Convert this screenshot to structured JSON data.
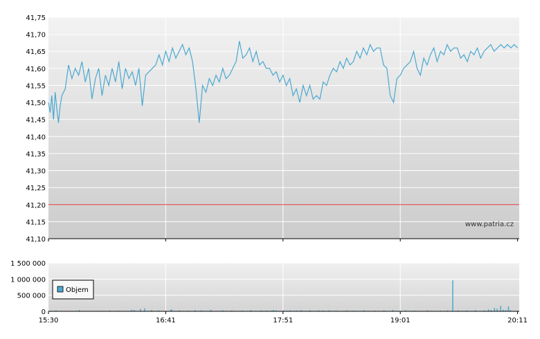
{
  "watermark": "www.patria.cz",
  "chart_data": [
    {
      "type": "line",
      "title": "",
      "xlabel": "",
      "ylabel": "",
      "ylim": [
        41.1,
        41.75
      ],
      "grid": true,
      "y_ticks": [
        "41,10",
        "41,15",
        "41,20",
        "41,25",
        "41,30",
        "41,35",
        "41,40",
        "41,45",
        "41,50",
        "41,55",
        "41,60",
        "41,65",
        "41,70",
        "41,75"
      ],
      "reference_line": {
        "value": 41.2,
        "color": "#e03030"
      },
      "line_color": "#4aa8d0",
      "x_minutes_from_1530": [
        0,
        1,
        2,
        3,
        4,
        5,
        6,
        7,
        8,
        10,
        12,
        14,
        16,
        18,
        20,
        22,
        24,
        26,
        28,
        30,
        32,
        34,
        36,
        38,
        40,
        42,
        44,
        46,
        48,
        50,
        52,
        54,
        56,
        58,
        60,
        62,
        64,
        66,
        68,
        70,
        72,
        74,
        76,
        78,
        80,
        82,
        84,
        86,
        88,
        90,
        92,
        94,
        96,
        98,
        100,
        102,
        104,
        106,
        108,
        110,
        112,
        114,
        116,
        118,
        120,
        122,
        124,
        126,
        128,
        130,
        132,
        134,
        136,
        138,
        140,
        142,
        144,
        146,
        148,
        150,
        152,
        154,
        156,
        158,
        160,
        162,
        164,
        166,
        168,
        170,
        172,
        174,
        176,
        178,
        180,
        182,
        184,
        186,
        188,
        190,
        192,
        194,
        196,
        198,
        200,
        202,
        204,
        206,
        208,
        210,
        212,
        214,
        216,
        218,
        220,
        222,
        224,
        226,
        228,
        230,
        232,
        234,
        236,
        238,
        240,
        242,
        244,
        246,
        248,
        250,
        252,
        254,
        256,
        258,
        260,
        262,
        264,
        266,
        268,
        270,
        272,
        274,
        276,
        278,
        280
      ],
      "y_values": [
        41.5,
        41.47,
        41.52,
        41.45,
        41.53,
        41.48,
        41.44,
        41.49,
        41.52,
        41.54,
        41.61,
        41.57,
        41.6,
        41.58,
        41.62,
        41.56,
        41.6,
        41.51,
        41.57,
        41.6,
        41.52,
        41.58,
        41.55,
        41.6,
        41.56,
        41.62,
        41.54,
        41.6,
        41.57,
        41.59,
        41.55,
        41.6,
        41.49,
        41.58,
        41.59,
        41.6,
        41.61,
        41.64,
        41.61,
        41.65,
        41.62,
        41.66,
        41.63,
        41.65,
        41.67,
        41.64,
        41.66,
        41.62,
        41.54,
        41.44,
        41.55,
        41.53,
        41.57,
        41.55,
        41.58,
        41.56,
        41.6,
        41.57,
        41.58,
        41.6,
        41.62,
        41.68,
        41.63,
        41.64,
        41.66,
        41.62,
        41.65,
        41.61,
        41.62,
        41.6,
        41.6,
        41.58,
        41.59,
        41.56,
        41.58,
        41.55,
        41.57,
        41.52,
        41.54,
        41.5,
        41.55,
        41.52,
        41.55,
        41.51,
        41.52,
        41.51,
        41.56,
        41.55,
        41.58,
        41.6,
        41.59,
        41.62,
        41.6,
        41.63,
        41.61,
        41.62,
        41.65,
        41.63,
        41.66,
        41.64,
        41.67,
        41.65,
        41.66,
        41.66,
        41.61,
        41.6,
        41.52,
        41.5,
        41.57,
        41.58,
        41.6,
        41.61,
        41.62,
        41.65,
        41.6,
        41.58,
        41.63,
        41.61,
        41.64,
        41.66,
        41.62,
        41.65,
        41.64,
        41.67,
        41.65,
        41.66,
        41.66,
        41.63,
        41.64,
        41.62,
        41.65,
        41.64,
        41.66,
        41.63,
        41.65,
        41.66,
        41.67,
        41.65,
        41.66,
        41.67,
        41.66,
        41.67,
        41.66,
        41.67,
        41.66
      ]
    },
    {
      "type": "bar",
      "series": [
        {
          "name": "Objem"
        }
      ],
      "ylim": [
        0,
        1500000
      ],
      "y_ticks": [
        "0",
        "500 000",
        "1 000 000",
        "1 500 000"
      ],
      "x_ticks": [
        "15:30",
        "16:41",
        "17:51",
        "19:01",
        "20:11"
      ],
      "bar_color": "#4aa8d0",
      "volumes": [
        {
          "m": 2,
          "v": 20000
        },
        {
          "m": 8,
          "v": 30000
        },
        {
          "m": 35,
          "v": 40000
        },
        {
          "m": 58,
          "v": 15000
        },
        {
          "m": 70,
          "v": 25000
        },
        {
          "m": 80,
          "v": 20000
        },
        {
          "m": 95,
          "v": 50000
        },
        {
          "m": 98,
          "v": 40000
        },
        {
          "m": 105,
          "v": 70000
        },
        {
          "m": 110,
          "v": 90000
        },
        {
          "m": 118,
          "v": 40000
        },
        {
          "m": 126,
          "v": 30000
        },
        {
          "m": 140,
          "v": 40000
        },
        {
          "m": 141,
          "v": 60000
        },
        {
          "m": 150,
          "v": 30000
        },
        {
          "m": 160,
          "v": 20000
        },
        {
          "m": 168,
          "v": 40000
        },
        {
          "m": 175,
          "v": 30000
        },
        {
          "m": 186,
          "v": 50000
        },
        {
          "m": 200,
          "v": 30000
        },
        {
          "m": 210,
          "v": 30000
        },
        {
          "m": 222,
          "v": 20000
        },
        {
          "m": 232,
          "v": 40000
        },
        {
          "m": 244,
          "v": 25000
        },
        {
          "m": 250,
          "v": 30000
        },
        {
          "m": 256,
          "v": 20000
        },
        {
          "m": 258,
          "v": 40000
        },
        {
          "m": 261,
          "v": 30000
        },
        {
          "m": 270,
          "v": 30000
        },
        {
          "m": 274,
          "v": 20000
        },
        {
          "m": 277,
          "v": 30000
        },
        {
          "m": 285,
          "v": 25000
        },
        {
          "m": 290,
          "v": 40000
        },
        {
          "m": 300,
          "v": 30000
        },
        {
          "m": 310,
          "v": 30000
        },
        {
          "m": 315,
          "v": 25000
        },
        {
          "m": 322,
          "v": 30000
        },
        {
          "m": 330,
          "v": 20000
        },
        {
          "m": 342,
          "v": 30000
        },
        {
          "m": 350,
          "v": 25000
        },
        {
          "m": 362,
          "v": 30000
        },
        {
          "m": 375,
          "v": 20000
        },
        {
          "m": 385,
          "v": 30000
        },
        {
          "m": 395,
          "v": 40000
        },
        {
          "m": 410,
          "v": 30000
        },
        {
          "m": 420,
          "v": 25000
        },
        {
          "m": 435,
          "v": 30000
        },
        {
          "m": 450,
          "v": 20000
        },
        {
          "m": 458,
          "v": 30000
        },
        {
          "m": 464,
          "v": 960000
        },
        {
          "m": 470,
          "v": 30000
        },
        {
          "m": 480,
          "v": 30000
        },
        {
          "m": 490,
          "v": 40000
        },
        {
          "m": 500,
          "v": 30000
        },
        {
          "m": 505,
          "v": 60000
        },
        {
          "m": 508,
          "v": 40000
        },
        {
          "m": 512,
          "v": 100000
        },
        {
          "m": 515,
          "v": 80000
        },
        {
          "m": 519,
          "v": 170000
        },
        {
          "m": 522,
          "v": 50000
        },
        {
          "m": 525,
          "v": 40000
        },
        {
          "m": 528,
          "v": 150000
        },
        {
          "m": 530,
          "v": 40000
        }
      ]
    }
  ]
}
